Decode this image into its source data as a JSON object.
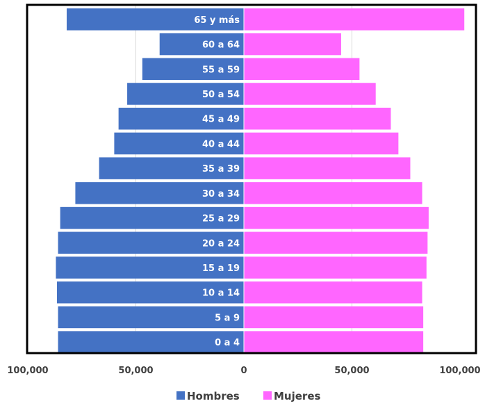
{
  "chart_data": {
    "type": "bar",
    "orientation": "horizontal",
    "title": "",
    "xlabel": "",
    "ylabel": "",
    "categories": [
      "65 y más",
      "60 a 64",
      "55 a 59",
      "50 a 54",
      "45 a 49",
      "40 a 44",
      "35 a 39",
      "30 a 34",
      "25 a 29",
      "20 a 24",
      "15 a 19",
      "10 a 14",
      "5 a 9",
      "0 a 4"
    ],
    "series": [
      {
        "name": "Hombres",
        "color": "#4472C4",
        "direction": "left",
        "values": [
          82000,
          39000,
          47000,
          54000,
          58000,
          60000,
          67000,
          78000,
          85000,
          86000,
          87000,
          86500,
          86000,
          86000
        ]
      },
      {
        "name": "Mujeres",
        "color": "#FF66FF",
        "direction": "right",
        "values": [
          102000,
          45000,
          53500,
          61000,
          68000,
          71500,
          77000,
          82500,
          85500,
          85000,
          84500,
          82500,
          83000,
          83000
        ]
      }
    ],
    "xlim": [
      -100000,
      100000
    ],
    "x_ticks": [
      {
        "value": -100000,
        "label": "100,000"
      },
      {
        "value": -50000,
        "label": "50,000"
      },
      {
        "value": 0,
        "label": "0"
      },
      {
        "value": 50000,
        "label": "50,000"
      },
      {
        "value": 100000,
        "label": "100,000"
      }
    ],
    "grid": true,
    "legend": "bottom-center"
  }
}
